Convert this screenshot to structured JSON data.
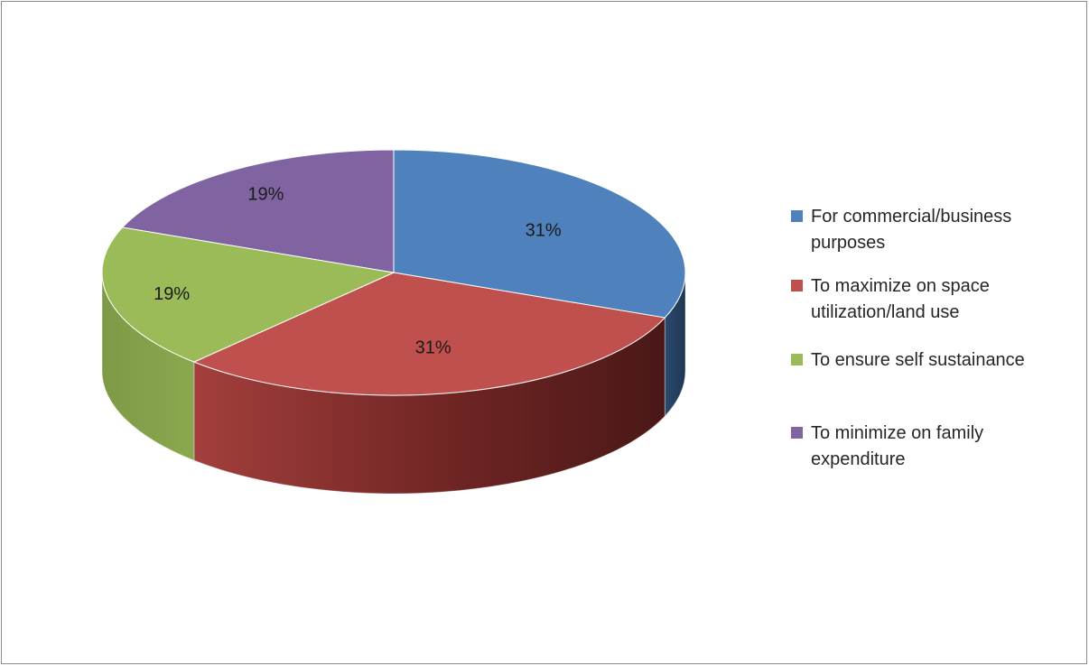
{
  "chart_data": {
    "type": "pie",
    "style": "3d",
    "title": "",
    "categories": [
      "For commercial/business purposes",
      "To maximize on space utilization/land use",
      "To ensure self sustainance",
      "To minimize on family expenditure"
    ],
    "values": [
      31,
      31,
      19,
      19
    ],
    "value_labels": [
      "31%",
      "31%",
      "19%",
      "19%"
    ],
    "colors": [
      "#4f81bd",
      "#c0504d",
      "#9bbb59",
      "#8064a2"
    ],
    "legend_position": "right"
  }
}
